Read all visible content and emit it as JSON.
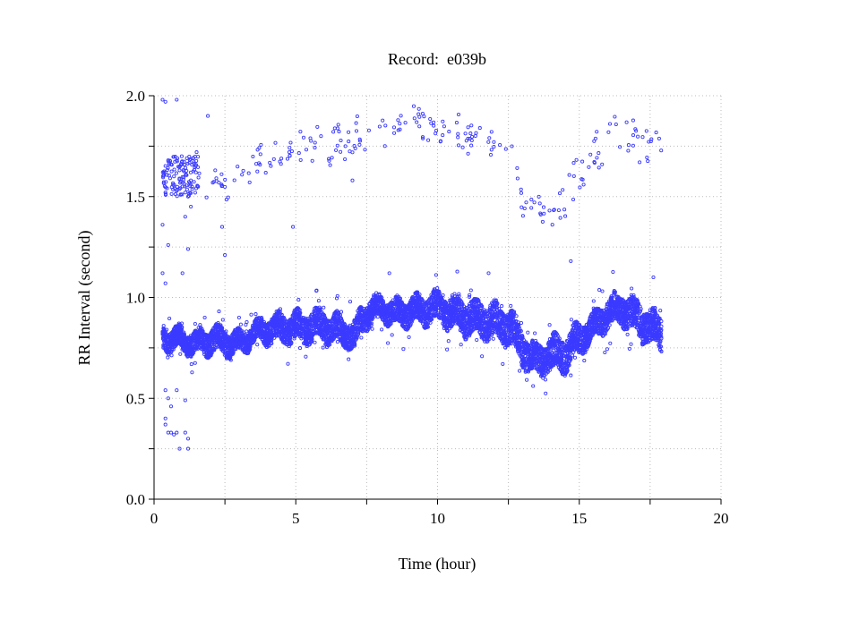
{
  "chart_data": {
    "type": "scatter",
    "title": "Record:  e039b",
    "xlabel": "Time (hour)",
    "ylabel": "RR Interval (second)",
    "xlim": [
      0,
      20
    ],
    "ylim": [
      0.0,
      2.0
    ],
    "xticks": [
      "0",
      "5",
      "10",
      "15",
      "20"
    ],
    "xtick_values": [
      0,
      5,
      10,
      15,
      20
    ],
    "xminor_step": 2.5,
    "yticks": [
      "0.0",
      "0.5",
      "1.0",
      "1.5",
      "2.0"
    ],
    "ytick_values": [
      0.0,
      0.5,
      1.0,
      1.5,
      2.0
    ],
    "yminor_step": 0.25,
    "grid": true,
    "marker_color": "#3a3aff",
    "main_band": {
      "description_units": "hour, RR center (s), half-spread (s)",
      "points": [
        [
          0.3,
          0.8,
          0.05
        ],
        [
          1.0,
          0.79,
          0.05
        ],
        [
          1.5,
          0.77,
          0.05
        ],
        [
          2.0,
          0.79,
          0.06
        ],
        [
          2.5,
          0.78,
          0.06
        ],
        [
          3.0,
          0.77,
          0.05
        ],
        [
          3.5,
          0.82,
          0.05
        ],
        [
          4.0,
          0.84,
          0.06
        ],
        [
          5.0,
          0.85,
          0.07
        ],
        [
          6.0,
          0.86,
          0.07
        ],
        [
          6.9,
          0.82,
          0.06
        ],
        [
          7.1,
          0.8,
          0.07
        ],
        [
          7.3,
          0.89,
          0.06
        ],
        [
          7.6,
          0.93,
          0.06
        ],
        [
          8.0,
          0.95,
          0.05
        ],
        [
          8.5,
          0.92,
          0.06
        ],
        [
          9.0,
          0.93,
          0.06
        ],
        [
          10.0,
          0.95,
          0.07
        ],
        [
          11.0,
          0.9,
          0.08
        ],
        [
          12.0,
          0.88,
          0.08
        ],
        [
          12.6,
          0.85,
          0.08
        ],
        [
          13.0,
          0.75,
          0.08
        ],
        [
          13.5,
          0.68,
          0.07
        ],
        [
          14.0,
          0.72,
          0.08
        ],
        [
          14.5,
          0.72,
          0.08
        ],
        [
          15.0,
          0.8,
          0.07
        ],
        [
          15.5,
          0.85,
          0.06
        ],
        [
          16.0,
          0.92,
          0.07
        ],
        [
          16.5,
          0.95,
          0.07
        ],
        [
          17.0,
          0.9,
          0.08
        ],
        [
          17.5,
          0.85,
          0.08
        ],
        [
          17.9,
          0.83,
          0.08
        ]
      ]
    },
    "upper_band": {
      "description_units": "hour, RR center (s), half-spread (s)",
      "points": [
        [
          1.8,
          1.55,
          0.06
        ],
        [
          3.0,
          1.6,
          0.08
        ],
        [
          4.0,
          1.68,
          0.08
        ],
        [
          5.0,
          1.72,
          0.08
        ],
        [
          6.5,
          1.75,
          0.08
        ],
        [
          8.0,
          1.85,
          0.08
        ],
        [
          9.5,
          1.86,
          0.07
        ],
        [
          11.0,
          1.8,
          0.08
        ],
        [
          12.6,
          1.75,
          0.07
        ],
        [
          13.0,
          1.45,
          0.06
        ],
        [
          14.0,
          1.4,
          0.08
        ],
        [
          14.8,
          1.55,
          0.1
        ],
        [
          15.5,
          1.7,
          0.1
        ],
        [
          16.5,
          1.82,
          0.1
        ],
        [
          17.9,
          1.72,
          0.1
        ]
      ]
    },
    "early_outliers": [
      [
        0.3,
        1.98
      ],
      [
        0.4,
        1.97
      ],
      [
        0.8,
        1.98
      ],
      [
        0.4,
        1.62
      ],
      [
        0.5,
        1.68
      ],
      [
        0.6,
        1.66
      ],
      [
        0.7,
        1.6
      ],
      [
        0.8,
        1.68
      ],
      [
        0.9,
        1.63
      ],
      [
        1.0,
        1.55
      ],
      [
        1.1,
        1.52
      ],
      [
        1.2,
        1.5
      ],
      [
        1.3,
        1.45
      ],
      [
        1.3,
        1.58
      ],
      [
        1.4,
        1.67
      ],
      [
        1.5,
        1.72
      ],
      [
        0.4,
        1.52
      ],
      [
        0.3,
        1.36
      ],
      [
        0.5,
        1.26
      ],
      [
        1.0,
        1.12
      ],
      [
        1.1,
        1.4
      ],
      [
        1.2,
        1.24
      ],
      [
        0.3,
        1.12
      ],
      [
        0.4,
        1.07
      ],
      [
        0.4,
        0.54
      ],
      [
        0.5,
        0.5
      ],
      [
        0.4,
        0.4
      ],
      [
        0.4,
        0.37
      ],
      [
        0.5,
        0.33
      ],
      [
        0.6,
        0.33
      ],
      [
        0.7,
        0.32
      ],
      [
        0.8,
        0.33
      ],
      [
        0.9,
        0.25
      ],
      [
        1.1,
        0.33
      ],
      [
        1.2,
        0.3
      ],
      [
        1.2,
        0.25
      ],
      [
        0.8,
        0.54
      ],
      [
        1.1,
        0.49
      ],
      [
        0.6,
        0.46
      ],
      [
        2.5,
        1.21
      ],
      [
        1.9,
        1.9
      ],
      [
        2.4,
        1.35
      ],
      [
        7.0,
        1.58
      ],
      [
        4.9,
        1.35
      ],
      [
        12.3,
        0.67
      ],
      [
        14.7,
        1.18
      ],
      [
        8.3,
        1.12
      ],
      [
        11.8,
        1.12
      ]
    ]
  }
}
